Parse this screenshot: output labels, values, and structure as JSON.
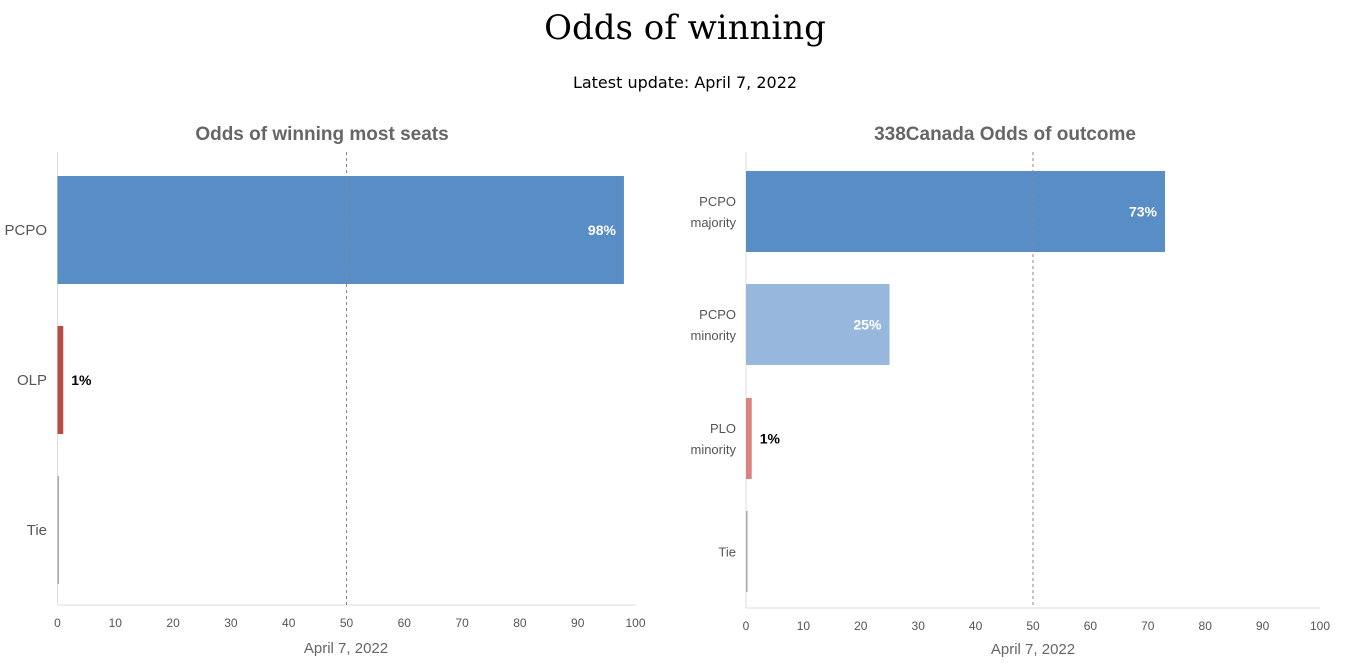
{
  "page": {
    "title": "Odds of winning",
    "subtitle": "Latest update: April 7, 2022"
  },
  "chart_data": [
    {
      "type": "bar",
      "orientation": "horizontal",
      "title": "Odds of winning most seats",
      "categories": [
        "PCPO",
        "OLP",
        "Tie"
      ],
      "values": [
        98,
        1,
        0
      ],
      "data_labels": [
        "98%",
        "1%",
        ""
      ],
      "colors": [
        "#588dc6",
        "#b84d47",
        "#aaaaaa"
      ],
      "xlabel": "April 7, 2022",
      "xlim": [
        0,
        100
      ],
      "xticks": [
        0,
        10,
        20,
        30,
        40,
        50,
        60,
        70,
        80,
        90,
        100
      ],
      "reference_line": 50,
      "grid": false
    },
    {
      "type": "bar",
      "orientation": "horizontal",
      "title": "338Canada Odds of outcome",
      "categories": [
        [
          "PCPO",
          "majority"
        ],
        [
          "PCPO",
          "minority"
        ],
        [
          "PLO",
          "minority"
        ],
        [
          "Tie"
        ]
      ],
      "values": [
        73,
        25,
        1,
        0
      ],
      "data_labels": [
        "73%",
        "25%",
        "1%",
        ""
      ],
      "colors": [
        "#588dc6",
        "#97b7dd",
        "#d8847f",
        "#aaaaaa"
      ],
      "xlabel": "April 7, 2022",
      "xlim": [
        0,
        100
      ],
      "xticks": [
        0,
        10,
        20,
        30,
        40,
        50,
        60,
        70,
        80,
        90,
        100
      ],
      "reference_line": 50,
      "grid": false
    }
  ]
}
